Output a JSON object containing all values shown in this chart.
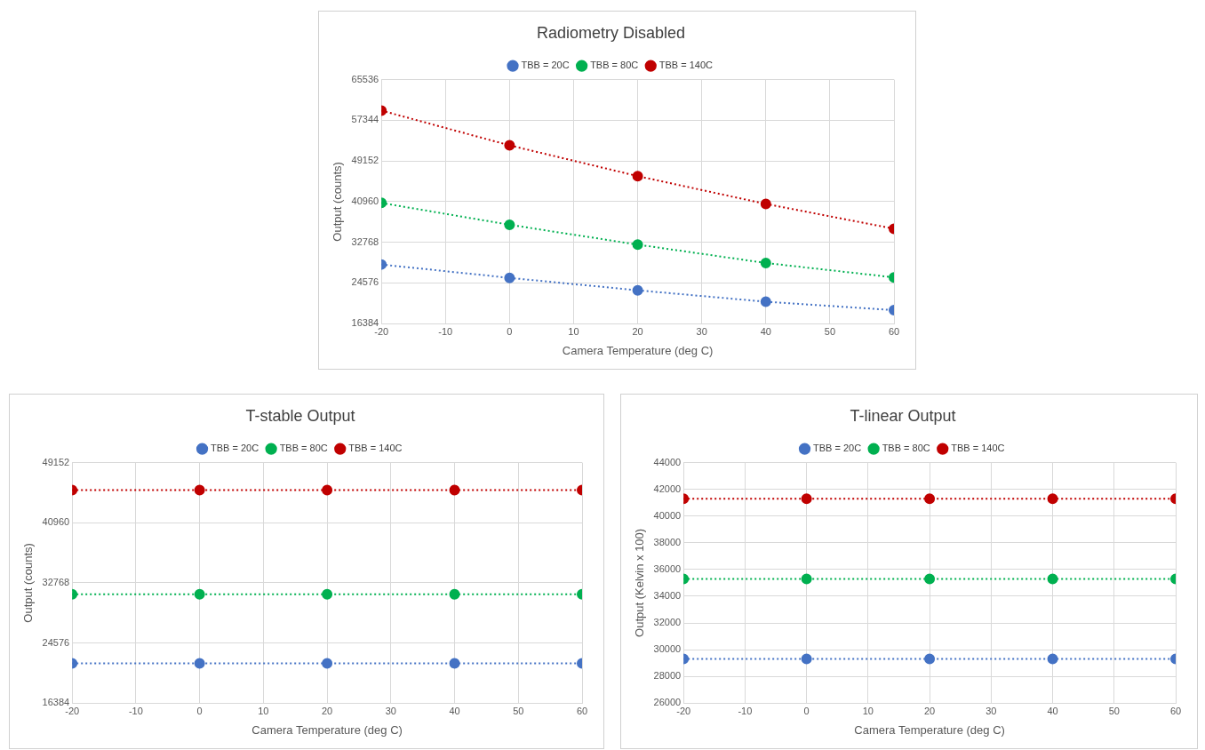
{
  "chart_data": [
    {
      "type": "line",
      "title": "Radiometry Disabled",
      "xlabel": "Camera Temperature (deg C)",
      "ylabel": "Output (counts)",
      "x": [
        -20,
        0,
        20,
        40,
        60
      ],
      "xlim": [
        -20,
        60
      ],
      "xticks": [
        -20,
        -10,
        0,
        10,
        20,
        30,
        40,
        50,
        60
      ],
      "ylim": [
        16384,
        65536
      ],
      "yticks": [
        16384,
        24576,
        32768,
        40960,
        49152,
        57344,
        65536
      ],
      "grid": true,
      "legend": "top",
      "marker": "circle",
      "line_style": "dotted",
      "series": [
        {
          "name": "TBB = 20C",
          "color": "#4472c4",
          "values": [
            28300,
            25600,
            23100,
            20800,
            19100
          ]
        },
        {
          "name": "TBB = 80C",
          "color": "#00b050",
          "values": [
            40700,
            36300,
            32300,
            28600,
            25700
          ]
        },
        {
          "name": "TBB = 140C",
          "color": "#c00000",
          "values": [
            59300,
            52300,
            46100,
            40500,
            35500
          ]
        }
      ]
    },
    {
      "type": "line",
      "title": "T-stable Output",
      "xlabel": "Camera Temperature (deg C)",
      "ylabel": "Output (counts)",
      "x": [
        -20,
        0,
        20,
        40,
        60
      ],
      "xlim": [
        -20,
        60
      ],
      "xticks": [
        -20,
        -10,
        0,
        10,
        20,
        30,
        40,
        50,
        60
      ],
      "ylim": [
        16384,
        49152
      ],
      "yticks": [
        16384,
        24576,
        32768,
        40960,
        49152
      ],
      "grid": true,
      "legend": "top",
      "marker": "circle",
      "line_style": "dotted",
      "series": [
        {
          "name": "TBB = 20C",
          "color": "#4472c4",
          "values": [
            21800,
            21800,
            21800,
            21800,
            21800
          ]
        },
        {
          "name": "TBB = 80C",
          "color": "#00b050",
          "values": [
            31200,
            31200,
            31200,
            31200,
            31200
          ]
        },
        {
          "name": "TBB = 140C",
          "color": "#c00000",
          "values": [
            45400,
            45400,
            45400,
            45400,
            45400
          ]
        }
      ]
    },
    {
      "type": "line",
      "title": "T-linear Output",
      "xlabel": "Camera Temperature (deg C)",
      "ylabel": "Output (Kelvin x 100)",
      "x": [
        -20,
        0,
        20,
        40,
        60
      ],
      "xlim": [
        -20,
        60
      ],
      "xticks": [
        -20,
        -10,
        0,
        10,
        20,
        30,
        40,
        50,
        60
      ],
      "ylim": [
        26000,
        44000
      ],
      "yticks": [
        26000,
        28000,
        30000,
        32000,
        34000,
        36000,
        38000,
        40000,
        42000,
        44000
      ],
      "grid": true,
      "legend": "top",
      "marker": "circle",
      "line_style": "dotted",
      "series": [
        {
          "name": "TBB = 20C",
          "color": "#4472c4",
          "values": [
            29300,
            29300,
            29300,
            29300,
            29300
          ]
        },
        {
          "name": "TBB = 80C",
          "color": "#00b050",
          "values": [
            35300,
            35300,
            35300,
            35300,
            35300
          ]
        },
        {
          "name": "TBB = 140C",
          "color": "#c00000",
          "values": [
            41300,
            41300,
            41300,
            41300,
            41300
          ]
        }
      ]
    }
  ]
}
